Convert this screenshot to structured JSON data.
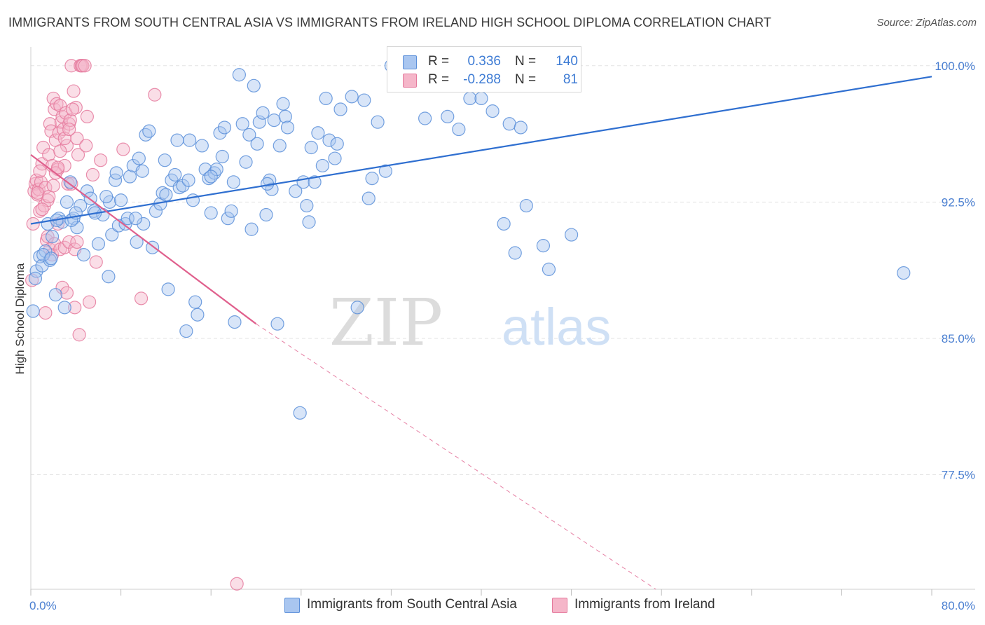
{
  "header": {
    "title": "IMMIGRANTS FROM SOUTH CENTRAL ASIA VS IMMIGRANTS FROM IRELAND HIGH SCHOOL DIPLOMA CORRELATION CHART",
    "source": "Source: ZipAtlas.com"
  },
  "watermark": {
    "zip": "ZIP",
    "atlas": "atlas"
  },
  "legend": {
    "rows": [
      {
        "r_label": "R =",
        "r_value": "0.336",
        "n_label": "N =",
        "n_value": "140"
      },
      {
        "r_label": "R =",
        "r_value": "-0.288",
        "n_label": "N =",
        "n_value": "81"
      }
    ]
  },
  "bottom_legend": {
    "items": [
      "Immigrants from South Central Asia",
      "Immigrants from Ireland"
    ]
  },
  "colors": {
    "blue_fill": "#a9c6f0",
    "blue_stroke": "#5b8fd9",
    "blue_line": "#2f6fd0",
    "pink_fill": "#f5b6c9",
    "pink_stroke": "#e57a9d",
    "pink_line": "#e0608d",
    "tick_text": "#4a7fd1"
  },
  "chart_data": {
    "type": "scatter",
    "title": "IMMIGRANTS FROM SOUTH CENTRAL ASIA VS IMMIGRANTS FROM IRELAND HIGH SCHOOL DIPLOMA CORRELATION CHART",
    "xlabel": "",
    "ylabel": "High School Diploma",
    "xlim": [
      0,
      80
    ],
    "ylim": [
      71.2,
      100.8
    ],
    "x_tick_labels": [
      "0.0%",
      "80.0%"
    ],
    "y_ticks": [
      77.5,
      85.0,
      92.5,
      100.0
    ],
    "y_tick_labels": [
      "77.5%",
      "85.0%",
      "92.5%",
      "100.0%"
    ],
    "grid": true,
    "legend_position": "top-center",
    "series": [
      {
        "name": "Immigrants from South Central Asia",
        "color": "#5b8fd9",
        "trend": {
          "x": [
            0,
            80
          ],
          "y": [
            91.3,
            99.4
          ]
        },
        "points": [
          [
            0.2,
            86.5
          ],
          [
            0.5,
            88.7
          ],
          [
            0.8,
            89.5
          ],
          [
            1.0,
            89.0
          ],
          [
            1.3,
            89.8
          ],
          [
            1.5,
            91.3
          ],
          [
            1.7,
            89.3
          ],
          [
            1.9,
            90.6
          ],
          [
            2.2,
            87.4
          ],
          [
            2.5,
            91.6
          ],
          [
            2.8,
            91.4
          ],
          [
            3.0,
            86.7
          ],
          [
            3.2,
            92.5
          ],
          [
            3.5,
            93.6
          ],
          [
            3.8,
            91.6
          ],
          [
            4.1,
            91.1
          ],
          [
            4.4,
            92.3
          ],
          [
            4.7,
            89.6
          ],
          [
            5.0,
            93.1
          ],
          [
            5.3,
            92.7
          ],
          [
            5.6,
            92.0
          ],
          [
            6.0,
            90.2
          ],
          [
            6.4,
            91.8
          ],
          [
            6.9,
            88.4
          ],
          [
            7.0,
            92.5
          ],
          [
            7.2,
            90.7
          ],
          [
            7.5,
            93.7
          ],
          [
            7.6,
            94.1
          ],
          [
            7.8,
            91.2
          ],
          [
            8.0,
            92.6
          ],
          [
            8.4,
            91.3
          ],
          [
            8.6,
            91.6
          ],
          [
            8.8,
            93.9
          ],
          [
            9.1,
            94.5
          ],
          [
            9.4,
            90.3
          ],
          [
            9.6,
            94.9
          ],
          [
            9.9,
            94.2
          ],
          [
            10.0,
            91.3
          ],
          [
            10.2,
            96.2
          ],
          [
            10.5,
            96.4
          ],
          [
            10.8,
            90.0
          ],
          [
            11.1,
            92.0
          ],
          [
            11.5,
            92.4
          ],
          [
            11.7,
            93.0
          ],
          [
            11.9,
            94.8
          ],
          [
            12.2,
            87.7
          ],
          [
            12.5,
            93.7
          ],
          [
            12.8,
            94.0
          ],
          [
            13.0,
            95.9
          ],
          [
            13.2,
            93.3
          ],
          [
            13.5,
            93.4
          ],
          [
            13.8,
            85.4
          ],
          [
            14.1,
            95.9
          ],
          [
            14.4,
            92.6
          ],
          [
            14.6,
            87.0
          ],
          [
            14.8,
            86.3
          ],
          [
            15.2,
            95.6
          ],
          [
            15.5,
            94.3
          ],
          [
            15.8,
            93.8
          ],
          [
            16.0,
            91.9
          ],
          [
            16.3,
            94.1
          ],
          [
            16.5,
            94.3
          ],
          [
            16.8,
            96.3
          ],
          [
            17.0,
            95.0
          ],
          [
            17.2,
            96.6
          ],
          [
            17.5,
            91.6
          ],
          [
            17.8,
            92.0
          ],
          [
            18.1,
            85.9
          ],
          [
            18.5,
            99.5
          ],
          [
            18.8,
            96.8
          ],
          [
            19.1,
            94.7
          ],
          [
            19.4,
            96.2
          ],
          [
            19.6,
            91.0
          ],
          [
            19.8,
            98.9
          ],
          [
            20.1,
            95.7
          ],
          [
            20.3,
            96.9
          ],
          [
            20.6,
            97.4
          ],
          [
            20.9,
            91.8
          ],
          [
            21.2,
            93.7
          ],
          [
            21.4,
            93.2
          ],
          [
            21.6,
            97.0
          ],
          [
            21.9,
            85.8
          ],
          [
            22.1,
            95.6
          ],
          [
            22.4,
            97.9
          ],
          [
            22.6,
            97.2
          ],
          [
            22.8,
            96.6
          ],
          [
            23.5,
            93.1
          ],
          [
            23.9,
            80.9
          ],
          [
            24.2,
            93.6
          ],
          [
            24.5,
            92.3
          ],
          [
            24.7,
            91.4
          ],
          [
            24.9,
            95.5
          ],
          [
            25.2,
            93.6
          ],
          [
            25.5,
            96.3
          ],
          [
            25.9,
            94.5
          ],
          [
            26.2,
            98.2
          ],
          [
            26.5,
            95.9
          ],
          [
            27.0,
            94.9
          ],
          [
            27.2,
            95.7
          ],
          [
            27.5,
            97.6
          ],
          [
            28.5,
            98.3
          ],
          [
            29.0,
            86.7
          ],
          [
            29.6,
            98.1
          ],
          [
            30.0,
            92.7
          ],
          [
            30.3,
            93.8
          ],
          [
            30.8,
            96.9
          ],
          [
            31.5,
            94.2
          ],
          [
            32.0,
            100.0
          ],
          [
            33.0,
            100.0
          ],
          [
            34.0,
            99.1
          ],
          [
            35.0,
            97.1
          ],
          [
            36.0,
            99.2
          ],
          [
            37.0,
            97.2
          ],
          [
            38.0,
            96.5
          ],
          [
            39.0,
            98.2
          ],
          [
            40.0,
            98.2
          ],
          [
            41.0,
            97.5
          ],
          [
            42.0,
            91.3
          ],
          [
            42.5,
            96.8
          ],
          [
            43.0,
            89.7
          ],
          [
            43.5,
            96.6
          ],
          [
            44.0,
            92.3
          ],
          [
            45.5,
            90.1
          ],
          [
            46.0,
            88.8
          ],
          [
            48.0,
            90.7
          ],
          [
            77.5,
            88.6
          ],
          [
            0.4,
            88.3
          ],
          [
            1.1,
            89.6
          ],
          [
            1.8,
            89.4
          ],
          [
            2.3,
            91.5
          ],
          [
            3.6,
            91.5
          ],
          [
            4.0,
            91.9
          ],
          [
            5.7,
            91.9
          ],
          [
            6.7,
            92.8
          ],
          [
            9.3,
            91.6
          ],
          [
            12.0,
            92.9
          ],
          [
            14.0,
            93.7
          ],
          [
            16.0,
            93.9
          ],
          [
            18.0,
            93.6
          ],
          [
            21.0,
            93.5
          ]
        ]
      },
      {
        "name": "Immigrants from Ireland",
        "color": "#e57a9d",
        "trend": {
          "x": [
            0,
            20
          ],
          "y": [
            95.1,
            85.8
          ]
        },
        "trend_dashed": {
          "x": [
            20,
            55.5
          ],
          "y": [
            85.8,
            71.2
          ]
        },
        "points": [
          [
            0.1,
            88.2
          ],
          [
            0.2,
            91.3
          ],
          [
            0.3,
            93.1
          ],
          [
            0.4,
            93.5
          ],
          [
            0.5,
            93.7
          ],
          [
            0.6,
            92.9
          ],
          [
            0.7,
            93.2
          ],
          [
            0.8,
            92.0
          ],
          [
            0.9,
            93.6
          ],
          [
            1.0,
            94.6
          ],
          [
            1.1,
            95.5
          ],
          [
            1.2,
            92.3
          ],
          [
            1.3,
            93.3
          ],
          [
            1.4,
            90.4
          ],
          [
            1.5,
            92.6
          ],
          [
            1.6,
            95.1
          ],
          [
            1.7,
            96.8
          ],
          [
            1.8,
            96.4
          ],
          [
            1.9,
            94.5
          ],
          [
            2.0,
            98.2
          ],
          [
            2.1,
            97.6
          ],
          [
            2.2,
            95.9
          ],
          [
            2.3,
            97.9
          ],
          [
            2.4,
            94.3
          ],
          [
            2.5,
            96.3
          ],
          [
            2.6,
            97.8
          ],
          [
            2.7,
            96.9
          ],
          [
            2.8,
            97.2
          ],
          [
            2.9,
            96.5
          ],
          [
            3.0,
            94.5
          ],
          [
            3.1,
            97.4
          ],
          [
            3.2,
            95.6
          ],
          [
            3.3,
            93.5
          ],
          [
            3.4,
            96.8
          ],
          [
            3.5,
            97.0
          ],
          [
            3.6,
            100.0
          ],
          [
            3.8,
            98.6
          ],
          [
            3.9,
            86.7
          ],
          [
            4.0,
            97.7
          ],
          [
            4.1,
            96.0
          ],
          [
            4.2,
            95.1
          ],
          [
            4.3,
            85.2
          ],
          [
            4.4,
            100.0
          ],
          [
            4.5,
            100.0
          ],
          [
            4.6,
            100.0
          ],
          [
            4.8,
            100.0
          ],
          [
            4.9,
            95.6
          ],
          [
            5.0,
            97.2
          ],
          [
            5.2,
            87.0
          ],
          [
            5.5,
            94.0
          ],
          [
            5.8,
            89.2
          ],
          [
            6.2,
            94.8
          ],
          [
            8.2,
            95.4
          ],
          [
            9.8,
            87.2
          ],
          [
            11.0,
            98.4
          ],
          [
            18.3,
            71.5
          ],
          [
            1.3,
            86.4
          ],
          [
            1.5,
            90.6
          ],
          [
            1.7,
            89.9
          ],
          [
            1.9,
            89.6
          ],
          [
            2.1,
            90.2
          ],
          [
            2.4,
            91.3
          ],
          [
            2.6,
            89.9
          ],
          [
            2.8,
            87.8
          ],
          [
            3.0,
            90.0
          ],
          [
            3.2,
            87.5
          ],
          [
            3.4,
            90.3
          ],
          [
            3.6,
            93.5
          ],
          [
            3.9,
            89.9
          ],
          [
            4.1,
            90.3
          ],
          [
            0.6,
            93.0
          ],
          [
            0.8,
            94.2
          ],
          [
            1.0,
            92.1
          ],
          [
            1.6,
            92.8
          ],
          [
            2.0,
            93.4
          ],
          [
            2.2,
            94.1
          ],
          [
            2.4,
            94.4
          ],
          [
            2.6,
            95.3
          ],
          [
            3.0,
            96.0
          ],
          [
            3.4,
            96.5
          ],
          [
            3.7,
            97.6
          ]
        ]
      }
    ]
  }
}
